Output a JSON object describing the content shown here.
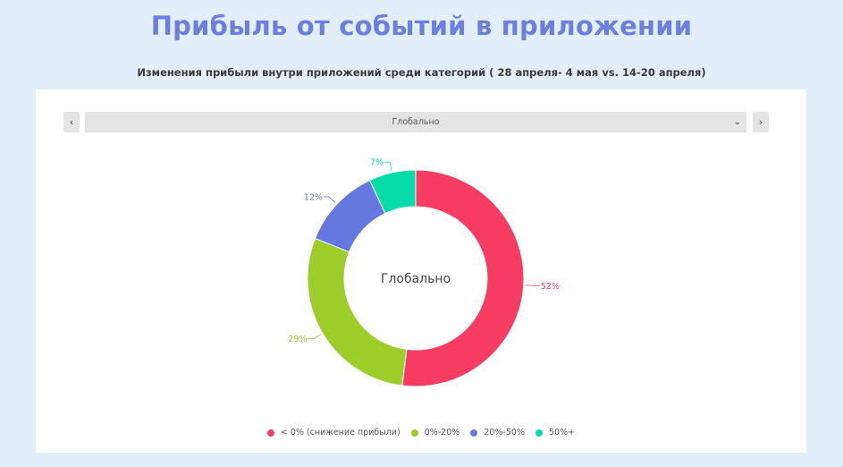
{
  "page": {
    "title": "Прибыль от событий в приложении",
    "subtitle": "Изменения прибыли внутри приложений среди категорий  ( 28 апреля- 4 мая vs.  14-20 апреля)"
  },
  "selector": {
    "prev_label": "‹",
    "value": "Глобально",
    "next_label": "›",
    "chevron": "⌄"
  },
  "chart_data": {
    "type": "pie",
    "donut": true,
    "center_label": "Глобально",
    "categories": [
      "< 0% (снижение прибыли)",
      "0%-20%",
      "20%-50%",
      "50%+"
    ],
    "values": [
      52,
      29,
      12,
      7
    ],
    "labels": [
      "52%",
      "29%",
      "12%",
      "7%"
    ],
    "colors": [
      "#f73c64",
      "#9dcd2a",
      "#6677e0",
      "#06dcaa"
    ],
    "legend_position": "bottom"
  }
}
